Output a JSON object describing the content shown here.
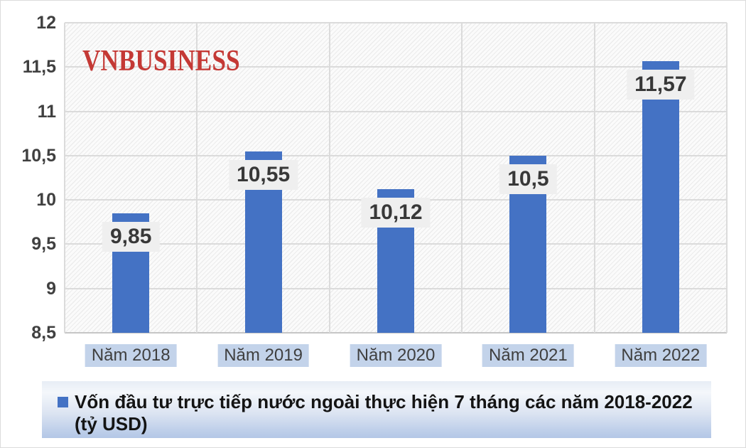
{
  "watermark": {
    "text": "VNBUSINESS",
    "color": "#c43935"
  },
  "chart_data": {
    "type": "bar",
    "title": "",
    "xlabel": "",
    "ylabel": "",
    "categories": [
      "Năm 2018",
      "Năm 2019",
      "Năm 2020",
      "Năm 2021",
      "Năm 2022"
    ],
    "values": [
      9.85,
      10.55,
      10.12,
      10.5,
      11.57
    ],
    "value_labels": [
      "9,85",
      "10,55",
      "10,12",
      "10,5",
      "11,57"
    ],
    "ylim": [
      8.5,
      12
    ],
    "ytick_step": 0.5,
    "ytick_labels": [
      "12",
      "11,5",
      "11",
      "10,5",
      "10",
      "9,5",
      "9",
      "8,5"
    ],
    "grid": true,
    "legend_position": "bottom",
    "legend": "Vốn đầu tư trực tiếp nước ngoài thực hiện 7 tháng các năm 2018-2022 (tỷ USD)",
    "legend_lines": [
      "Vốn đầu tư trực tiếp nước ngoài thực hiện 7 tháng các năm 2018-2022",
      "(tỷ USD)"
    ],
    "colors": {
      "bar": "#4472c4",
      "x_label_bg": "#c3d3ea",
      "grid": "#dbdbdb",
      "value_label_bg": "#efefef",
      "axis_text": "#404040"
    }
  }
}
